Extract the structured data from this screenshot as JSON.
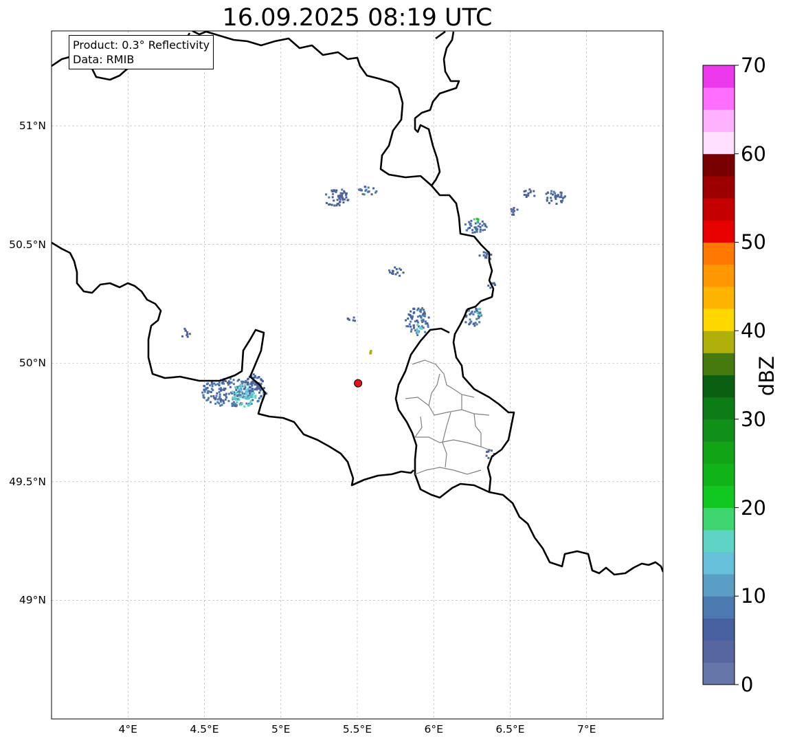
{
  "title": "16.09.2025 08:19 UTC",
  "info": {
    "product": "Product: 0.3° Reflectivity",
    "data": "Data: RMIB"
  },
  "lat_labels": [
    {
      "value": 51.0,
      "text": "51°N"
    },
    {
      "value": 50.5,
      "text": "50.5°N"
    },
    {
      "value": 50.0,
      "text": "50°N"
    },
    {
      "value": 49.5,
      "text": "49.5°N"
    },
    {
      "value": 49.0,
      "text": "49°N"
    }
  ],
  "lon_labels": [
    {
      "value": 4.0,
      "text": "4°E"
    },
    {
      "value": 4.5,
      "text": "4.5°E"
    },
    {
      "value": 5.0,
      "text": "5°E"
    },
    {
      "value": 5.5,
      "text": "5.5°E"
    },
    {
      "value": 6.0,
      "text": "6°E"
    },
    {
      "value": 6.5,
      "text": "6.5°E"
    },
    {
      "value": 7.0,
      "text": "7°E"
    }
  ],
  "extent": {
    "lon_min": 3.5,
    "lon_max": 7.5,
    "lat_min": 48.5,
    "lat_max": 51.4
  },
  "radar_site": {
    "lon": 5.505,
    "lat": 49.915,
    "color": "#e8131a"
  },
  "colorbar": {
    "label": "dBZ",
    "min": 0,
    "max": 70,
    "ticks": [
      "0",
      "10",
      "20",
      "30",
      "40",
      "50",
      "60",
      "70"
    ],
    "colors": [
      "#6676a8",
      "#56669e",
      "#4660a0",
      "#4a7ab0",
      "#5a9ec6",
      "#66c0da",
      "#5ed4c4",
      "#3ed670",
      "#10c820",
      "#10b418",
      "#10a416",
      "#109018",
      "#0c7c14",
      "#0a6010",
      "#467a0e",
      "#b0b00a",
      "#ffd800",
      "#ffb400",
      "#ff9800",
      "#ff7800",
      "#e80000",
      "#c40000",
      "#9c0000",
      "#780000",
      "#ffe0ff",
      "#ffb2ff",
      "#ff6eff",
      "#ee38ee"
    ]
  },
  "radar_echoes": [
    {
      "lon": 4.68,
      "lat": 49.88,
      "rlon": 0.22,
      "rlat": 0.06,
      "dbz": 8
    },
    {
      "lon": 4.75,
      "lat": 49.87,
      "rlon": 0.08,
      "rlat": 0.05,
      "dbz": 15
    },
    {
      "lon": 4.82,
      "lat": 49.92,
      "rlon": 0.06,
      "rlat": 0.04,
      "dbz": 6
    },
    {
      "lon": 5.36,
      "lat": 50.7,
      "rlon": 0.08,
      "rlat": 0.04,
      "dbz": 6
    },
    {
      "lon": 5.56,
      "lat": 50.73,
      "rlon": 0.06,
      "rlat": 0.02,
      "dbz": 8
    },
    {
      "lon": 5.89,
      "lat": 50.18,
      "rlon": 0.08,
      "rlat": 0.06,
      "dbz": 8
    },
    {
      "lon": 5.9,
      "lat": 50.15,
      "rlon": 0.03,
      "rlat": 0.02,
      "dbz": 15
    },
    {
      "lon": 6.26,
      "lat": 50.58,
      "rlon": 0.08,
      "rlat": 0.03,
      "dbz": 8
    },
    {
      "lon": 6.27,
      "lat": 50.6,
      "rlon": 0.02,
      "rlat": 0.015,
      "dbz": 20
    },
    {
      "lon": 6.34,
      "lat": 50.46,
      "rlon": 0.05,
      "rlat": 0.02,
      "dbz": 7
    },
    {
      "lon": 6.25,
      "lat": 50.2,
      "rlon": 0.06,
      "rlat": 0.04,
      "dbz": 7
    },
    {
      "lon": 6.29,
      "lat": 50.22,
      "rlon": 0.02,
      "rlat": 0.02,
      "dbz": 15
    },
    {
      "lon": 6.78,
      "lat": 50.7,
      "rlon": 0.08,
      "rlat": 0.03,
      "dbz": 6
    },
    {
      "lon": 6.62,
      "lat": 50.72,
      "rlon": 0.04,
      "rlat": 0.02,
      "dbz": 5
    },
    {
      "lon": 5.75,
      "lat": 50.39,
      "rlon": 0.05,
      "rlat": 0.02,
      "dbz": 6
    },
    {
      "lon": 6.36,
      "lat": 49.62,
      "rlon": 0.03,
      "rlat": 0.02,
      "dbz": 6
    },
    {
      "lon": 4.37,
      "lat": 50.13,
      "rlon": 0.03,
      "rlat": 0.02,
      "dbz": 5
    },
    {
      "lon": 5.46,
      "lat": 50.19,
      "rlon": 0.03,
      "rlat": 0.01,
      "dbz": 5
    },
    {
      "lon": 6.52,
      "lat": 50.64,
      "rlon": 0.03,
      "rlat": 0.02,
      "dbz": 5
    },
    {
      "lon": 6.38,
      "lat": 50.33,
      "rlon": 0.03,
      "rlat": 0.015,
      "dbz": 5
    },
    {
      "lon": 5.58,
      "lat": 50.05,
      "rlon": 0.01,
      "rlat": 0.01,
      "dbz": 40
    }
  ]
}
